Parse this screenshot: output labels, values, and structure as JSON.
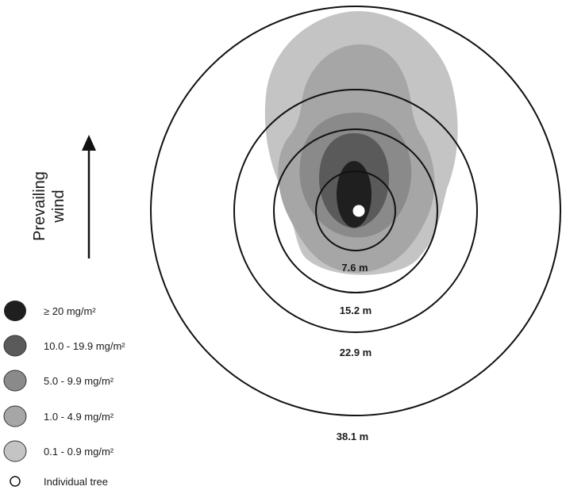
{
  "colors": {
    "level_20_plus": "#1f1f1f",
    "level_10_19_9": "#5a5a5a",
    "level_5_9_9": "#8a8a8a",
    "level_1_4_9": "#a6a6a6",
    "level_0_1_0_9": "#c4c4c4",
    "ring_stroke": "#111111",
    "tree_fill": "#ffffff"
  },
  "wind": {
    "line1": "Prevailing",
    "line2": "wind",
    "arrow_icon": "arrow-up-icon"
  },
  "rings": [
    {
      "label": "7.6 m"
    },
    {
      "label": "15.2 m"
    },
    {
      "label": "22.9 m"
    },
    {
      "label": "38.1 m"
    }
  ],
  "legend": [
    {
      "label": "≥ 20 mg/m²"
    },
    {
      "label": "10.0 - 19.9 mg/m²"
    },
    {
      "label": "5.0 - 9.9 mg/m²"
    },
    {
      "label": "1.0 - 4.9 mg/m²"
    },
    {
      "label": "0.1 - 0.9 mg/m²"
    },
    {
      "label": "Individual tree"
    }
  ]
}
